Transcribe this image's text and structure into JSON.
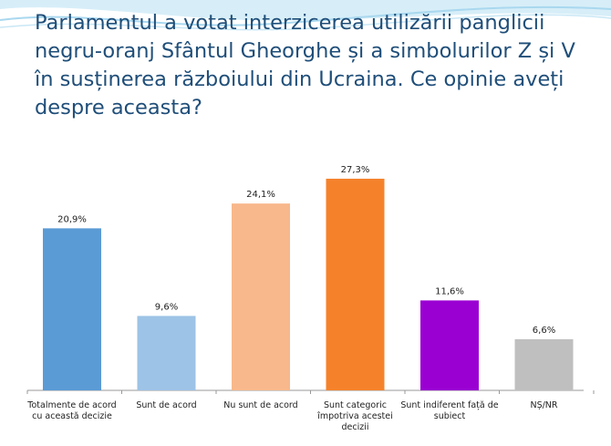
{
  "slide": {
    "title": "Parlamentul a votat interzicerea utilizării panglicii negru-oranj Sfântul Gheorghe și a simbolurilor Z și V în susținerea războiului din Ucraina. Ce opinie aveți despre aceasta?"
  },
  "chart_data": {
    "type": "bar",
    "title": "Parlamentul a votat interzicerea utilizării panglicii negru-oranj Sfântul Gheorghe și a simbolurilor Z și V în susținerea războiului din Ucraina. Ce opinie aveți despre aceasta?",
    "categories": [
      [
        "Totalmente de acord",
        "cu această decizie"
      ],
      [
        "Sunt de acord"
      ],
      [
        "Nu sunt de acord"
      ],
      [
        "Sunt categoric",
        "împotriva acestei",
        "decizii"
      ],
      [
        "Sunt indiferent față de",
        "subiect"
      ],
      [
        "NȘ/NR"
      ]
    ],
    "values": [
      20.9,
      9.6,
      24.1,
      27.3,
      11.6,
      6.6
    ],
    "value_labels": [
      "20,9%",
      "9,6%",
      "24,1%",
      "27,3%",
      "11,6%",
      "6,6%"
    ],
    "colors": [
      "#5b9bd5",
      "#9dc3e6",
      "#f8b88b",
      "#f5822b",
      "#9b00d3",
      "#bfbfbf"
    ],
    "unit": "%",
    "ylim": [
      0,
      30
    ],
    "grid": false,
    "legend": "none"
  }
}
